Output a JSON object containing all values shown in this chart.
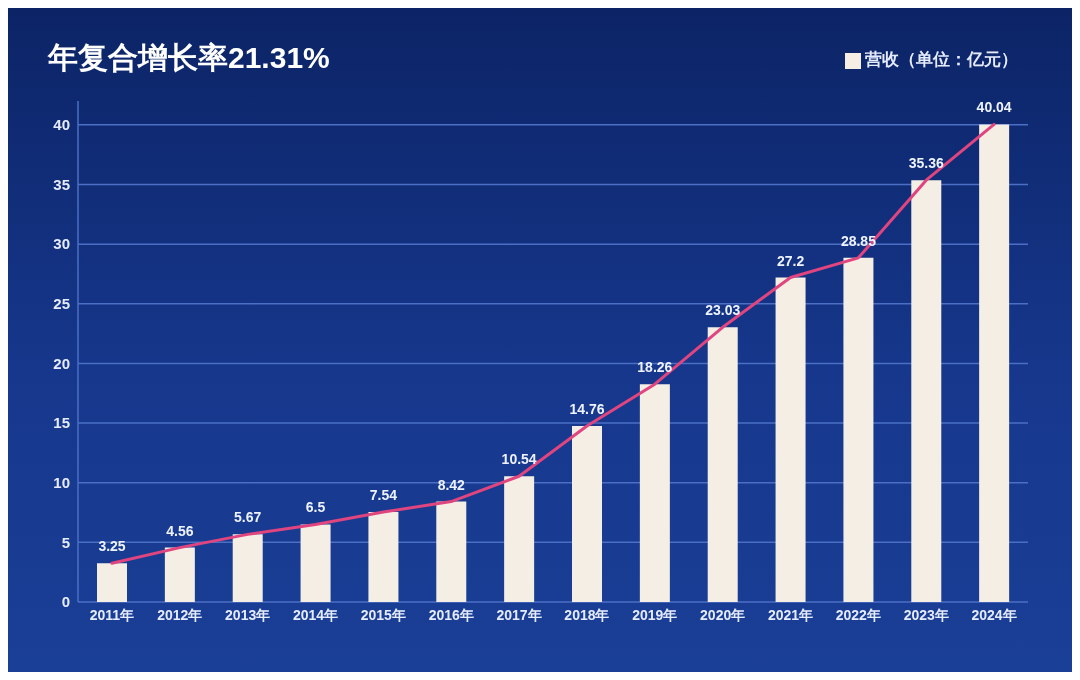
{
  "chart_data": {
    "type": "bar",
    "title": "年复合增长率21.31%",
    "categories": [
      "2011年",
      "2012年",
      "2013年",
      "2014年",
      "2015年",
      "2016年",
      "2017年",
      "2018年",
      "2019年",
      "2020年",
      "2021年",
      "2022年",
      "2023年",
      "2024年"
    ],
    "series": [
      {
        "name": "营收（单位：亿元）",
        "color": "#f5eee4",
        "values": [
          3.25,
          4.56,
          5.67,
          6.5,
          7.54,
          8.42,
          10.54,
          14.76,
          18.26,
          23.03,
          27.2,
          28.85,
          35.36,
          40.04
        ],
        "value_labels": [
          "3.25",
          "4.56",
          "5.67",
          "6.5",
          "7.54",
          "8.42",
          "10.54",
          "14.76",
          "18.26",
          "23.03",
          "27.2",
          "28.85",
          "35.36",
          "40.04"
        ]
      },
      {
        "type": "line",
        "color": "#e0457f",
        "values": [
          3.25,
          4.56,
          5.67,
          6.5,
          7.54,
          8.42,
          10.54,
          14.76,
          18.26,
          23.03,
          27.2,
          28.85,
          35.36,
          40.04
        ]
      }
    ],
    "ylim": [
      0,
      42
    ],
    "yticks": [
      0,
      5,
      10,
      15,
      20,
      25,
      30,
      35,
      40
    ],
    "grid": "y",
    "legend": "top right"
  }
}
